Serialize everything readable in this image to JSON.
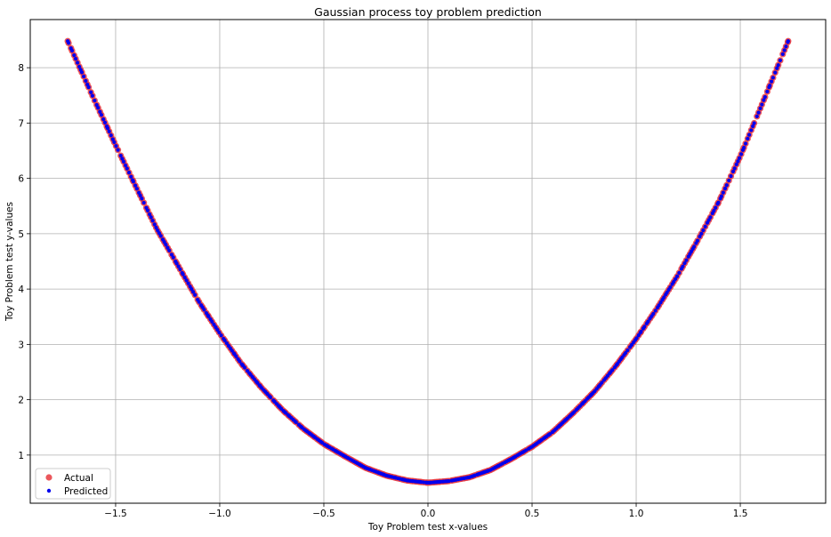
{
  "chart_data": {
    "type": "scatter",
    "title": "Gaussian process toy problem prediction",
    "xlabel": "Toy Problem test x-values",
    "ylabel": "Toy Problem test y-values",
    "xlim": [
      -1.91,
      1.91
    ],
    "ylim": [
      0.13,
      8.87
    ],
    "xticks": [
      -1.5,
      -1.0,
      -0.5,
      0.0,
      0.5,
      1.0,
      1.5
    ],
    "xtick_labels": [
      "−1.5",
      "−1.0",
      "−0.5",
      "0.0",
      "0.5",
      "1.0",
      "1.5"
    ],
    "yticks": [
      1,
      2,
      3,
      4,
      5,
      6,
      7,
      8
    ],
    "ytick_labels": [
      "1",
      "2",
      "3",
      "4",
      "5",
      "6",
      "7",
      "8"
    ],
    "grid": true,
    "legend_position": "lower-left",
    "x_range": [
      -1.73,
      1.73
    ],
    "series": [
      {
        "name": "Actual",
        "color": "#e8393f",
        "marker": "circle",
        "points": [
          [
            -1.73,
            8.48
          ],
          [
            -1.6,
            7.4
          ],
          [
            -1.5,
            6.6
          ],
          [
            -1.4,
            5.83
          ],
          [
            -1.3,
            5.07
          ],
          [
            -1.2,
            4.42
          ],
          [
            -1.1,
            3.77
          ],
          [
            -1.0,
            3.2
          ],
          [
            -0.9,
            2.67
          ],
          [
            -0.8,
            2.22
          ],
          [
            -0.7,
            1.82
          ],
          [
            -0.6,
            1.48
          ],
          [
            -0.5,
            1.2
          ],
          [
            -0.4,
            0.98
          ],
          [
            -0.3,
            0.77
          ],
          [
            -0.2,
            0.63
          ],
          [
            -0.1,
            0.54
          ],
          [
            0.0,
            0.5
          ],
          [
            0.1,
            0.53
          ],
          [
            0.2,
            0.6
          ],
          [
            0.3,
            0.73
          ],
          [
            0.4,
            0.93
          ],
          [
            0.5,
            1.15
          ],
          [
            0.6,
            1.42
          ],
          [
            0.7,
            1.77
          ],
          [
            0.8,
            2.15
          ],
          [
            0.9,
            2.6
          ],
          [
            1.0,
            3.1
          ],
          [
            1.1,
            3.65
          ],
          [
            1.2,
            4.25
          ],
          [
            1.3,
            4.91
          ],
          [
            1.4,
            5.6
          ],
          [
            1.5,
            6.4
          ],
          [
            1.6,
            7.3
          ],
          [
            1.73,
            8.48
          ]
        ]
      },
      {
        "name": "Predicted",
        "color": "#0000ee",
        "marker": "dot",
        "points": [
          [
            -1.73,
            8.48
          ],
          [
            -1.6,
            7.4
          ],
          [
            -1.5,
            6.6
          ],
          [
            -1.4,
            5.83
          ],
          [
            -1.3,
            5.07
          ],
          [
            -1.2,
            4.42
          ],
          [
            -1.1,
            3.77
          ],
          [
            -1.0,
            3.2
          ],
          [
            -0.9,
            2.67
          ],
          [
            -0.8,
            2.22
          ],
          [
            -0.7,
            1.82
          ],
          [
            -0.6,
            1.48
          ],
          [
            -0.5,
            1.2
          ],
          [
            -0.4,
            0.98
          ],
          [
            -0.3,
            0.77
          ],
          [
            -0.2,
            0.63
          ],
          [
            -0.1,
            0.54
          ],
          [
            0.0,
            0.5
          ],
          [
            0.1,
            0.53
          ],
          [
            0.2,
            0.6
          ],
          [
            0.3,
            0.73
          ],
          [
            0.4,
            0.93
          ],
          [
            0.5,
            1.15
          ],
          [
            0.6,
            1.42
          ],
          [
            0.7,
            1.77
          ],
          [
            0.8,
            2.15
          ],
          [
            0.9,
            2.6
          ],
          [
            1.0,
            3.1
          ],
          [
            1.1,
            3.65
          ],
          [
            1.2,
            4.25
          ],
          [
            1.3,
            4.91
          ],
          [
            1.4,
            5.6
          ],
          [
            1.5,
            6.4
          ],
          [
            1.6,
            7.3
          ],
          [
            1.73,
            8.48
          ]
        ]
      }
    ]
  }
}
